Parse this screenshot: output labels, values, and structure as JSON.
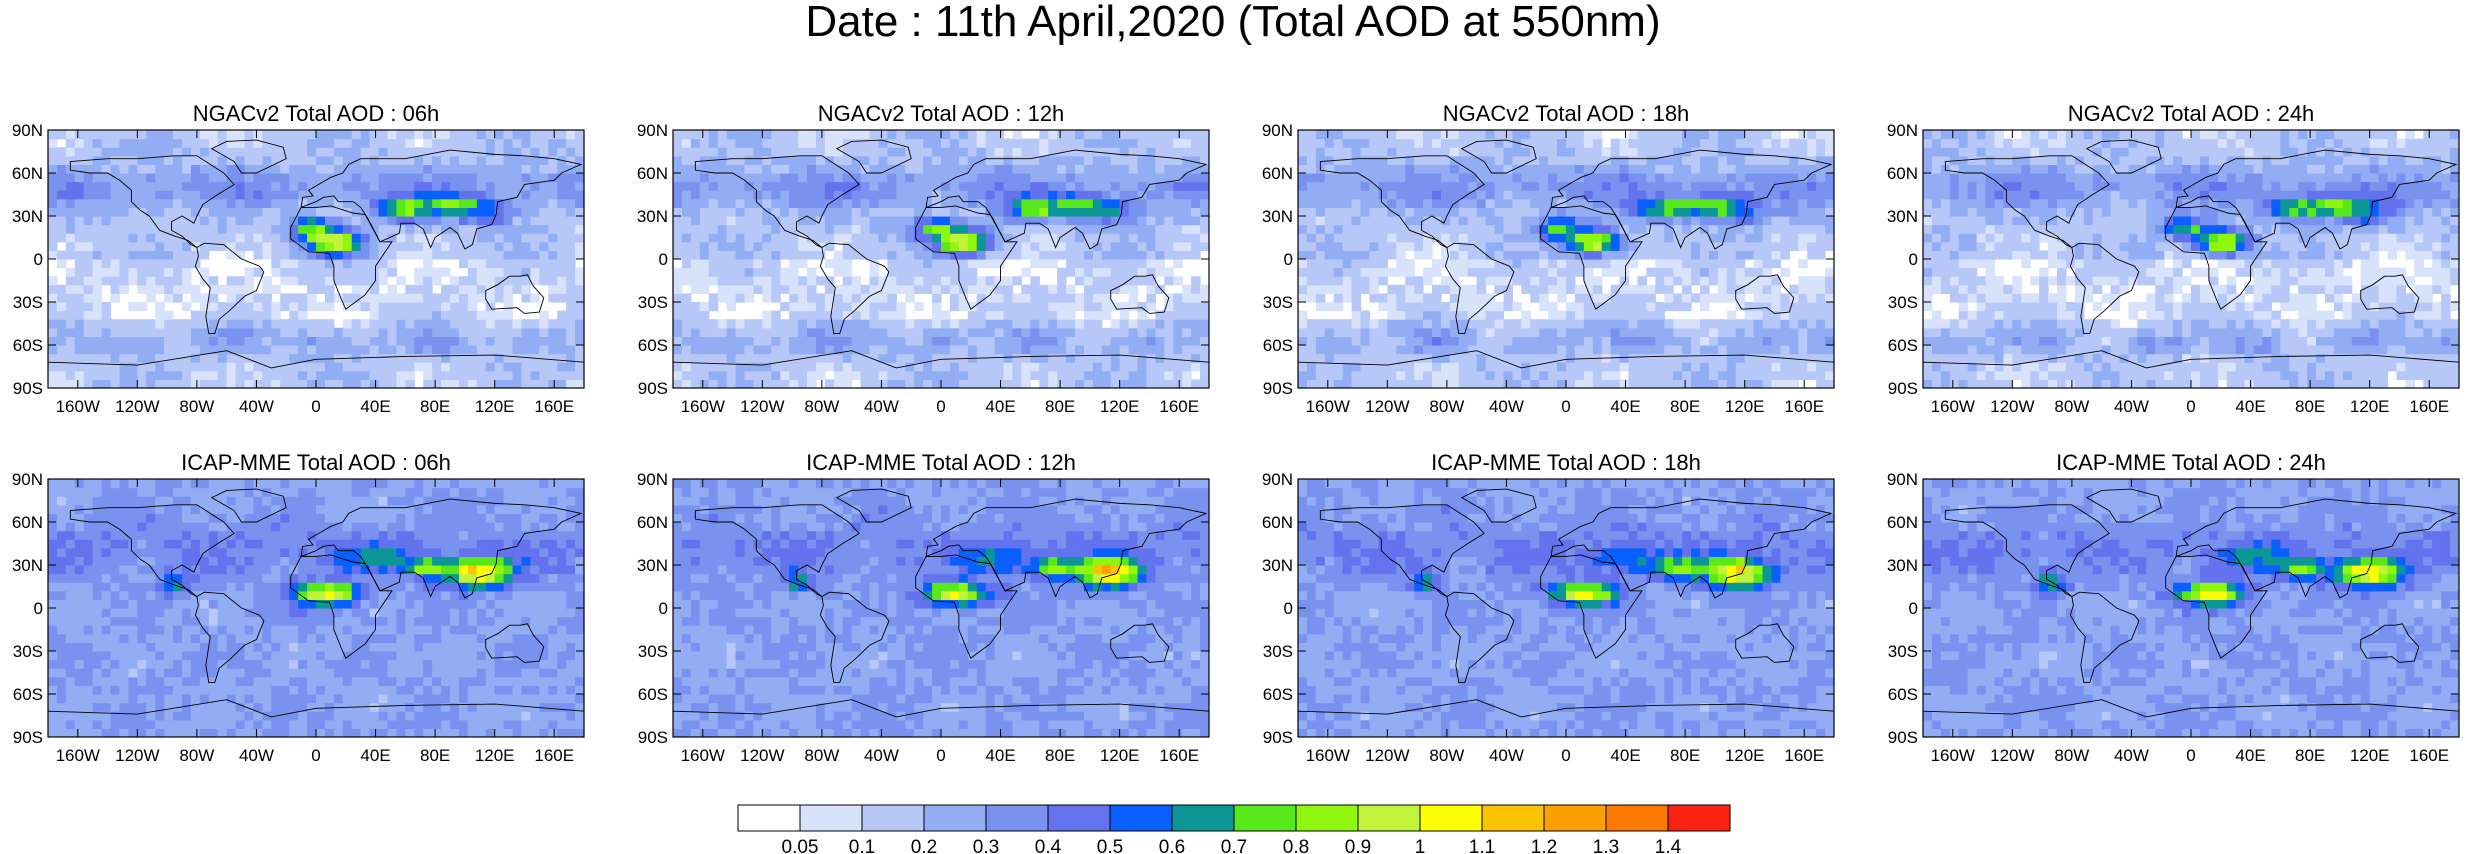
{
  "title": "Date : 11th April,2020 (Total AOD at 550nm)",
  "panels": [
    {
      "title": "NGACv2 Total AOD : 06h"
    },
    {
      "title": "NGACv2 Total AOD : 12h"
    },
    {
      "title": "NGACv2 Total AOD : 18h"
    },
    {
      "title": "NGACv2 Total AOD : 24h"
    },
    {
      "title": "ICAP-MME Total AOD : 06h"
    },
    {
      "title": "ICAP-MME Total AOD : 12h"
    },
    {
      "title": "ICAP-MME Total AOD : 18h"
    },
    {
      "title": "ICAP-MME Total AOD : 24h"
    }
  ],
  "lat_ticks": [
    "90N",
    "60N",
    "30N",
    "0",
    "30S",
    "60S",
    "90S"
  ],
  "lat_values": [
    90,
    60,
    30,
    0,
    -30,
    -60,
    -90
  ],
  "lon_ticks": [
    "160W",
    "120W",
    "80W",
    "40W",
    "0",
    "40E",
    "80E",
    "120E",
    "160E"
  ],
  "lon_values": [
    -160,
    -120,
    -80,
    -40,
    0,
    40,
    80,
    120,
    160
  ],
  "colorbar": {
    "labels": [
      "0.05",
      "0.1",
      "0.2",
      "0.3",
      "0.4",
      "0.5",
      "0.6",
      "0.7",
      "0.8",
      "0.9",
      "1",
      "1.1",
      "1.2",
      "1.3",
      "1.4"
    ],
    "colors": [
      "#ffffff",
      "#d8e2fb",
      "#b7c8f8",
      "#92adf3",
      "#7a92ef",
      "#6372ed",
      "#0a5fff",
      "#0c9696",
      "#58e81b",
      "#8ff60e",
      "#c1f33a",
      "#fdfe00",
      "#fbc300",
      "#fd9f00",
      "#fd7a00",
      "#fa2212"
    ]
  }
}
